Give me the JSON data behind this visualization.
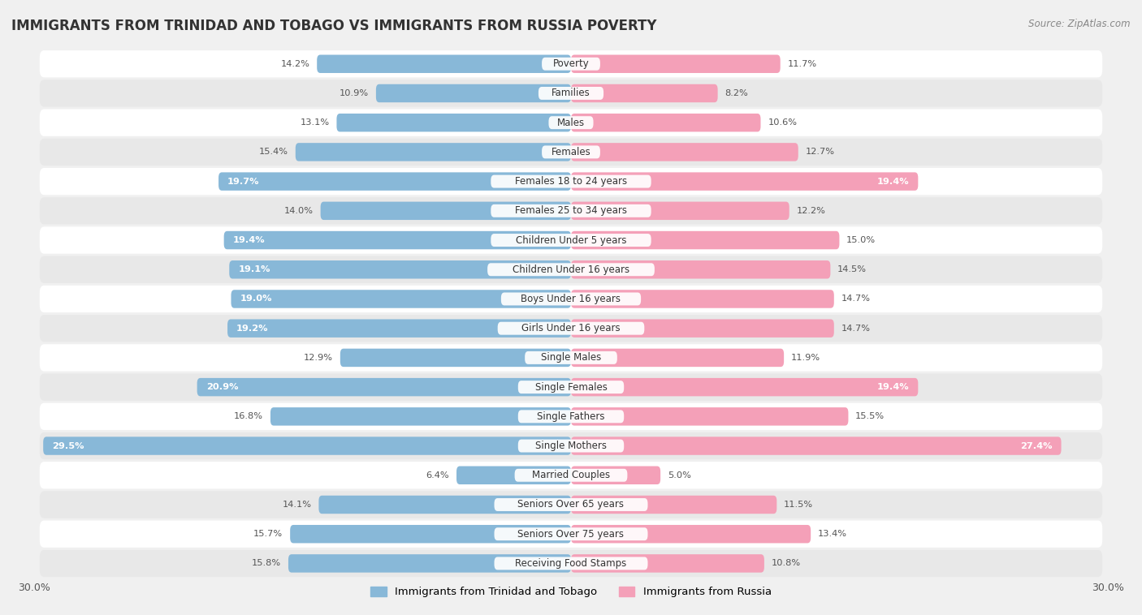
{
  "title": "IMMIGRANTS FROM TRINIDAD AND TOBAGO VS IMMIGRANTS FROM RUSSIA POVERTY",
  "source": "Source: ZipAtlas.com",
  "categories": [
    "Poverty",
    "Families",
    "Males",
    "Females",
    "Females 18 to 24 years",
    "Females 25 to 34 years",
    "Children Under 5 years",
    "Children Under 16 years",
    "Boys Under 16 years",
    "Girls Under 16 years",
    "Single Males",
    "Single Females",
    "Single Fathers",
    "Single Mothers",
    "Married Couples",
    "Seniors Over 65 years",
    "Seniors Over 75 years",
    "Receiving Food Stamps"
  ],
  "trinidad_values": [
    14.2,
    10.9,
    13.1,
    15.4,
    19.7,
    14.0,
    19.4,
    19.1,
    19.0,
    19.2,
    12.9,
    20.9,
    16.8,
    29.5,
    6.4,
    14.1,
    15.7,
    15.8
  ],
  "russia_values": [
    11.7,
    8.2,
    10.6,
    12.7,
    19.4,
    12.2,
    15.0,
    14.5,
    14.7,
    14.7,
    11.9,
    19.4,
    15.5,
    27.4,
    5.0,
    11.5,
    13.4,
    10.8
  ],
  "trinidad_color": "#88b8d8",
  "russia_color": "#f4a0b8",
  "trinidad_label": "Immigrants from Trinidad and Tobago",
  "russia_label": "Immigrants from Russia",
  "xlim": 30.0,
  "bar_height": 0.62,
  "bg_color": "#f0f0f0",
  "row_color_even": "#ffffff",
  "row_color_odd": "#e8e8e8",
  "title_fontsize": 12,
  "label_fontsize": 8.5,
  "value_fontsize": 8.2,
  "inside_threshold": 17.0
}
